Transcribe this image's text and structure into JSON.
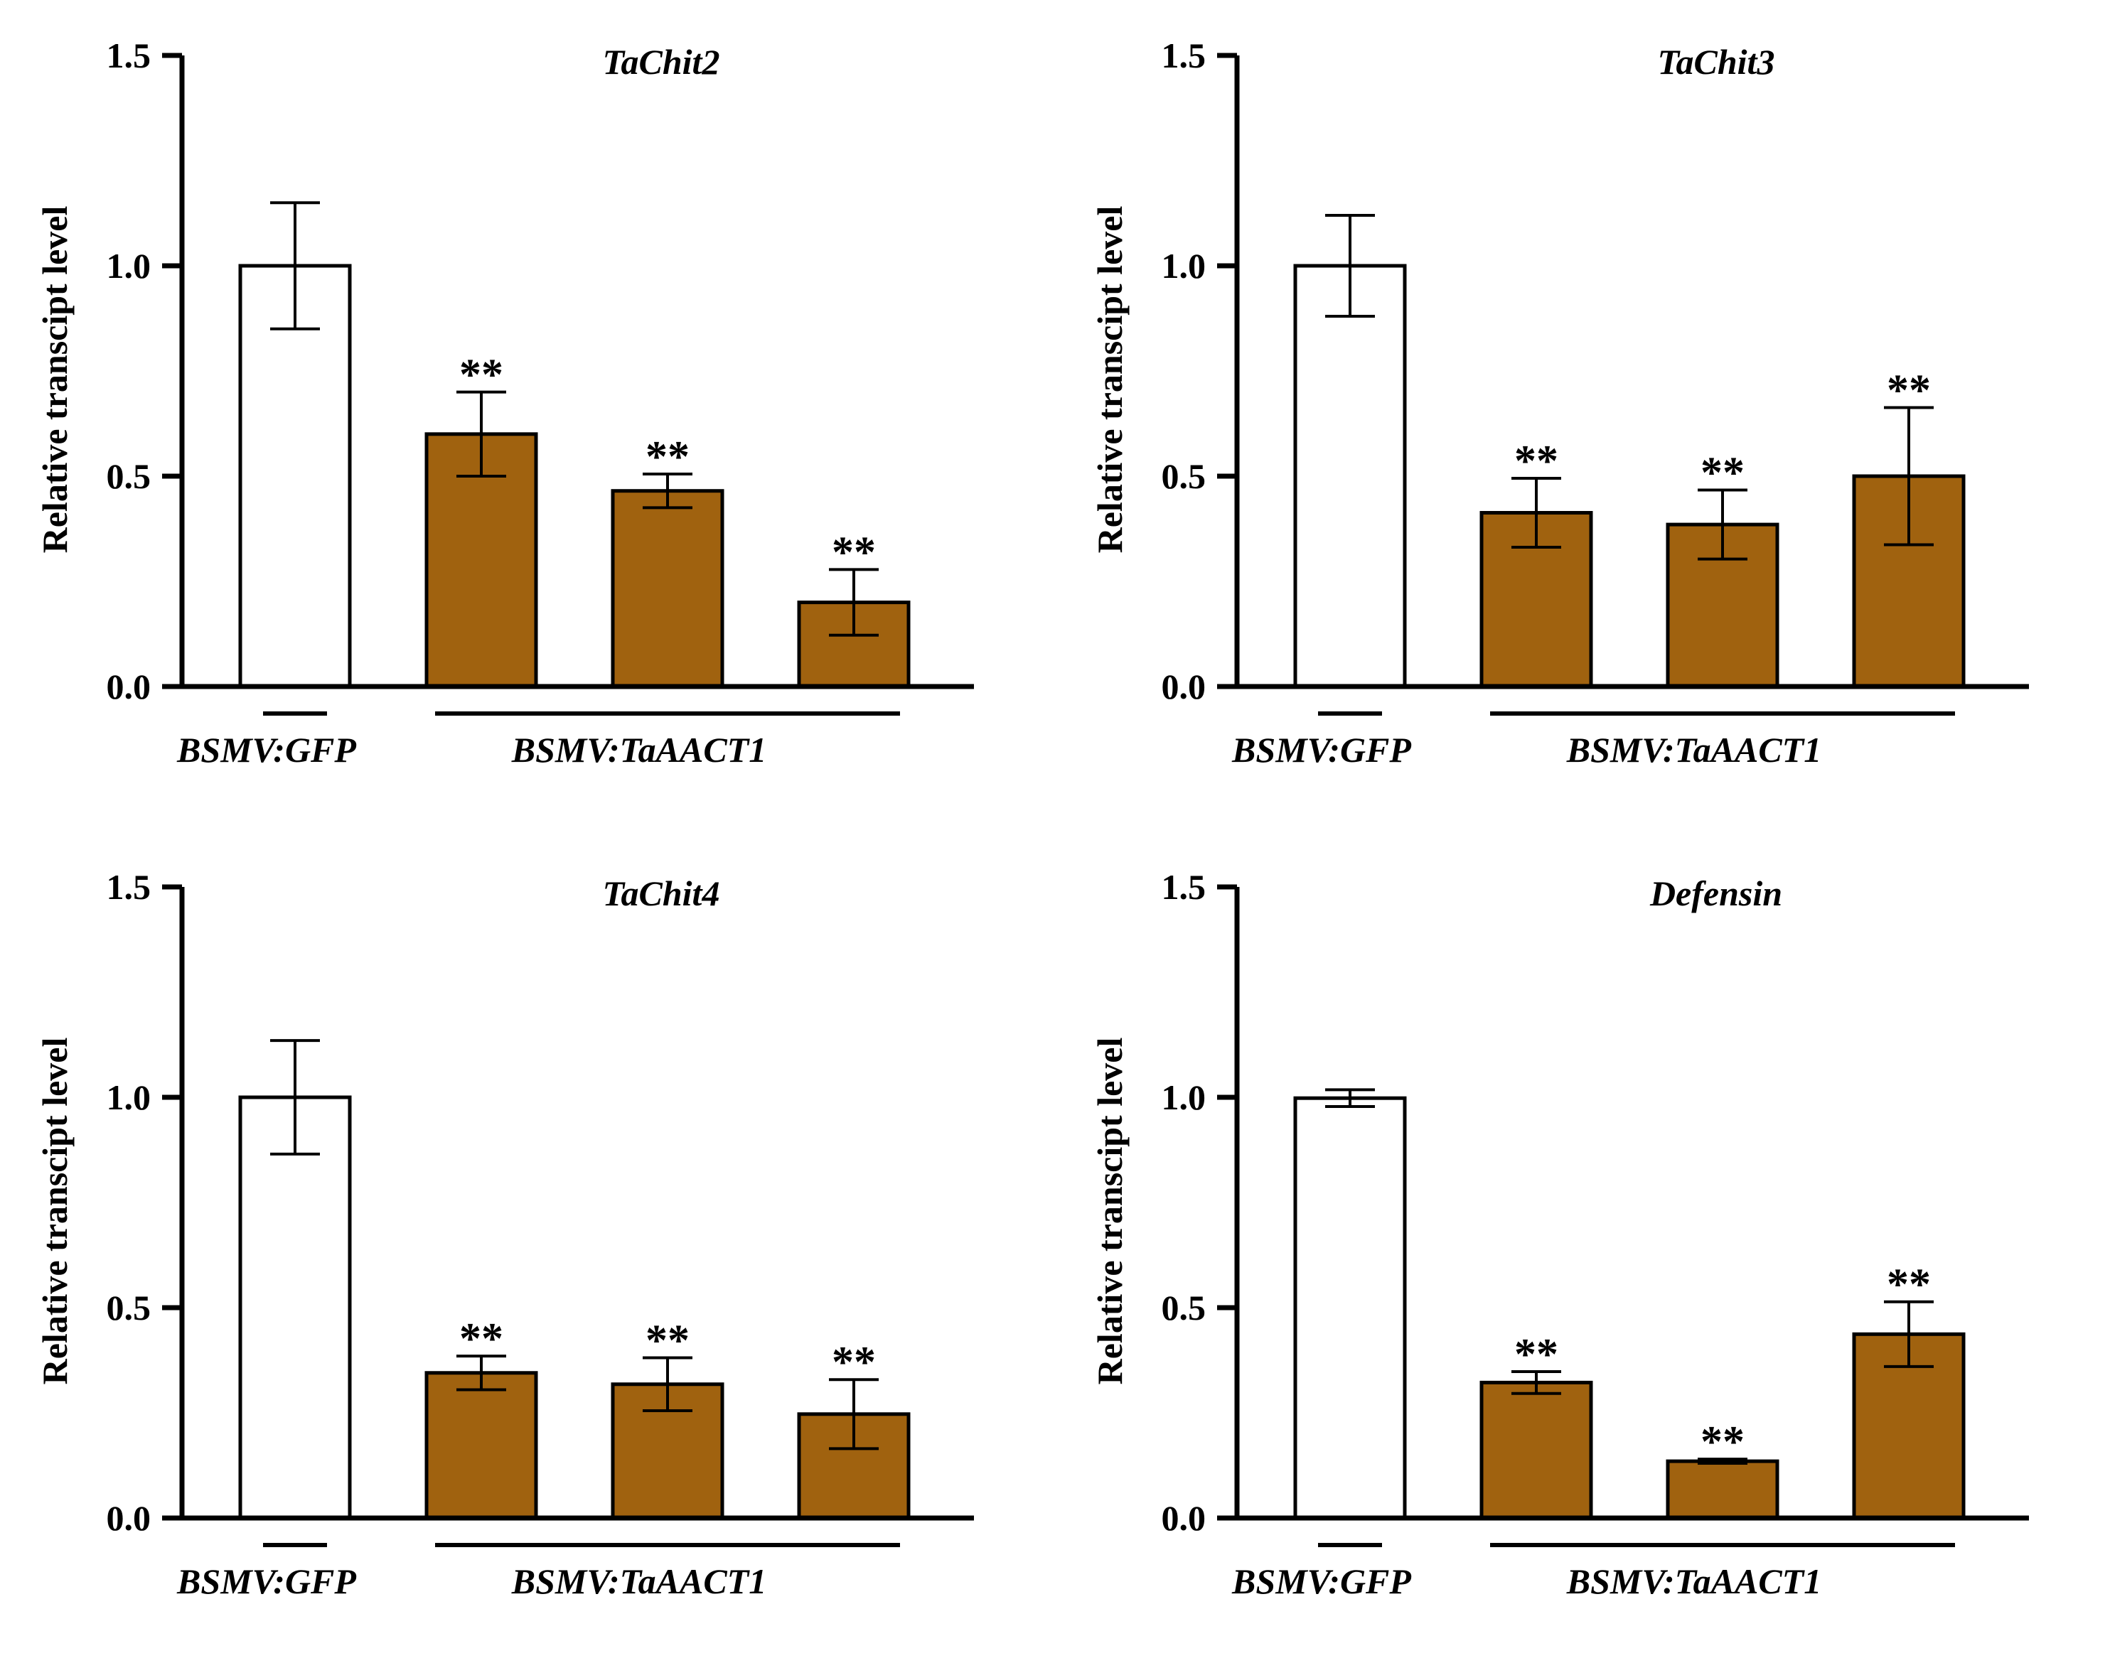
{
  "figure": {
    "bar_colors": {
      "control": "#ffffff",
      "treatment": "#a0620f"
    },
    "axis_color": "#000000"
  },
  "chart_data": [
    {
      "type": "bar",
      "title": "TaChit2",
      "ylabel": "Relative transcipt level",
      "ylim": [
        0,
        1.5
      ],
      "yticks": [
        "0.0",
        "0.5",
        "1.0",
        "1.5"
      ],
      "values": [
        1.0,
        0.6,
        0.465,
        0.2
      ],
      "errors": [
        0.15,
        0.1,
        0.04,
        0.078
      ],
      "significance": [
        "",
        "**",
        "**",
        "**"
      ],
      "groups": [
        {
          "label": "BSMV:GFP",
          "bars": [
            0
          ]
        },
        {
          "label": "BSMV:TaAACT1",
          "bars": [
            1,
            2,
            3
          ]
        }
      ]
    },
    {
      "type": "bar",
      "title": "TaChit3",
      "ylabel": "Relative transcipt level",
      "ylim": [
        0,
        1.5
      ],
      "yticks": [
        "0.0",
        "0.5",
        "1.0",
        "1.5"
      ],
      "values": [
        1.0,
        0.413,
        0.385,
        0.5
      ],
      "errors": [
        0.12,
        0.082,
        0.082,
        0.163
      ],
      "significance": [
        "",
        "**",
        "**",
        "**"
      ],
      "groups": [
        {
          "label": "BSMV:GFP",
          "bars": [
            0
          ]
        },
        {
          "label": "BSMV:TaAACT1",
          "bars": [
            1,
            2,
            3
          ]
        }
      ]
    },
    {
      "type": "bar",
      "title": "TaChit4",
      "ylabel": "Relative transcipt level",
      "ylim": [
        0,
        1.5
      ],
      "yticks": [
        "0.0",
        "0.5",
        "1.0",
        "1.5"
      ],
      "values": [
        1.0,
        0.345,
        0.318,
        0.247
      ],
      "errors": [
        0.135,
        0.04,
        0.063,
        0.082
      ],
      "significance": [
        "",
        "**",
        "**",
        "**"
      ],
      "groups": [
        {
          "label": "BSMV:GFP",
          "bars": [
            0
          ]
        },
        {
          "label": "BSMV:TaAACT1",
          "bars": [
            1,
            2,
            3
          ]
        }
      ]
    },
    {
      "type": "bar",
      "title": "Defensin",
      "ylabel": "Relative transcipt level",
      "ylim": [
        0,
        1.5
      ],
      "yticks": [
        "0.0",
        "0.5",
        "1.0",
        "1.5"
      ],
      "values": [
        0.998,
        0.322,
        0.135,
        0.437
      ],
      "errors": [
        0.02,
        0.026,
        0.005,
        0.077
      ],
      "significance": [
        "",
        "**",
        "**",
        "**"
      ],
      "groups": [
        {
          "label": "BSMV:GFP",
          "bars": [
            0
          ]
        },
        {
          "label": "BSMV:TaAACT1",
          "bars": [
            1,
            2,
            3
          ]
        }
      ]
    }
  ]
}
